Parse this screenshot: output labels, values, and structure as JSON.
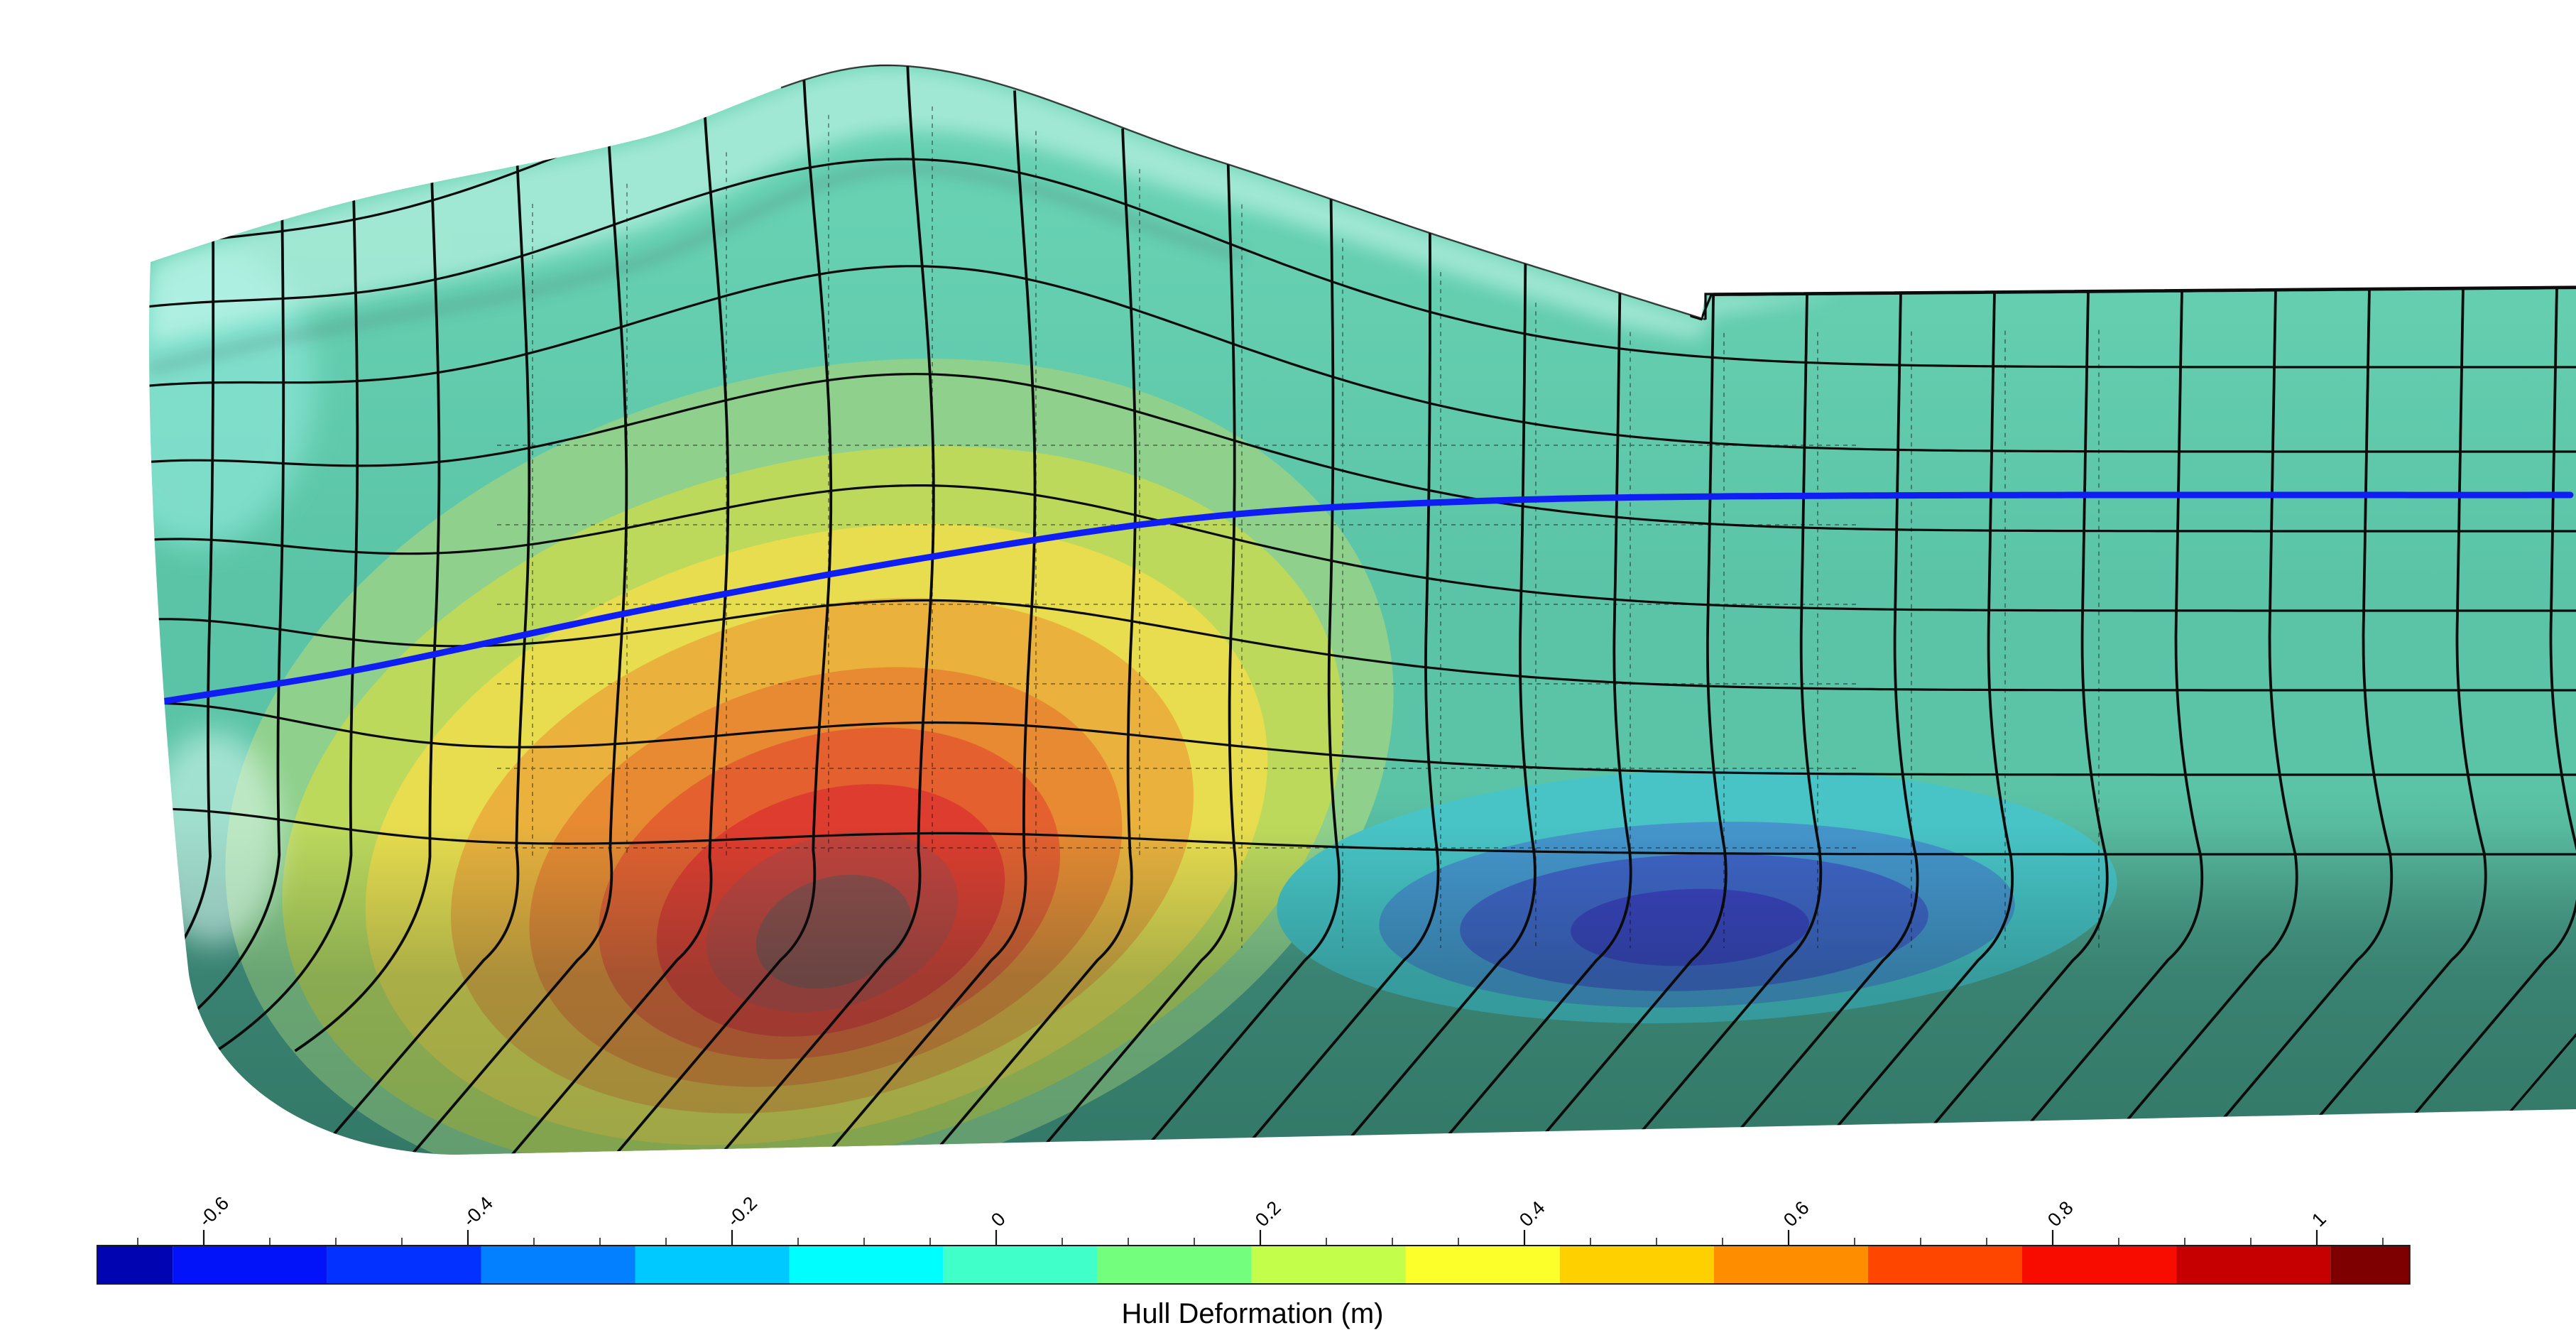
{
  "figure": {
    "background": "#ffffff",
    "type_hint": "filled contour plot on 3D ship hull surface with panel mesh"
  },
  "hull_view": {
    "base_color": "#5bc4a6",
    "base_color_light": "#67d1b2",
    "bottom_shade_color": "#48987f",
    "mesh_color": "#0b0b0b",
    "waterline_color": "#0f1ef2",
    "highlight_color": "#dbfff6",
    "bow_patch_color": "#8fe9db",
    "positive_contour_colors": [
      "#8fd08c",
      "#bdd95c",
      "#e8dd4e",
      "#eab23c",
      "#e78a31",
      "#e4602f",
      "#de3c2e",
      "#c2423c",
      "#8f4b48"
    ],
    "negative_contour_colors": [
      "#48c4c6",
      "#4595cc",
      "#3f63c6",
      "#3a40bd"
    ]
  },
  "colorbar": {
    "label": "Hull Deformation (m)",
    "units": "m",
    "min": -0.681,
    "max": 1.07,
    "major_ticks": [
      -0.6,
      -0.4,
      -0.2,
      0,
      0.2,
      0.4,
      0.6,
      0.8,
      1
    ],
    "tick_labels": [
      "-0.6",
      "-0.4",
      "-0.2",
      "0",
      "0.2",
      "0.4",
      "0.6",
      "0.8",
      "1"
    ],
    "minor_tick_step": 0.05,
    "band_edges": [
      -0.6807,
      -0.6235,
      -0.5068,
      -0.3901,
      -0.2734,
      -0.1567,
      -0.04,
      0.0767,
      0.1934,
      0.3101,
      0.4268,
      0.5435,
      0.6602,
      0.7769,
      0.8936,
      1.0103,
      1.0703
    ],
    "band_colors": [
      "#0005b2",
      "#0213fa",
      "#0331ff",
      "#0280ff",
      "#00c9ff",
      "#00fdff",
      "#40ffc9",
      "#73ff7d",
      "#c3ff4a",
      "#fdff2b",
      "#ffd000",
      "#ff8d00",
      "#ff4600",
      "#f90c00",
      "#c60000",
      "#7f0000"
    ]
  },
  "chart_data": {
    "type": "heatmap",
    "title": "Hull Deformation (m)",
    "field": "hull deformation",
    "units": "m",
    "scene": "3D ship hull viewed from the side, bow at left; deformed panel mesh (solid black) with undeformed reference mesh (thin dashed); waterline drawn as thick blue curve",
    "value_range": [
      -0.681,
      1.07
    ],
    "contour_levels": [
      -0.6235,
      -0.5068,
      -0.3901,
      -0.2734,
      -0.1567,
      -0.04,
      0.0767,
      0.1934,
      0.3101,
      0.4268,
      0.5435,
      0.6602,
      0.7769,
      0.8936,
      1.0103
    ],
    "legend_position": "bottom horizontal colorbar",
    "regions": [
      {
        "label": "positive deformation hotspot",
        "approx_value_max": 1.07,
        "location": "forward side shell around and below the waterline, bow quarter"
      },
      {
        "label": "negative deformation pocket",
        "approx_value_min": -0.68,
        "location": "bilge / bottom near midship"
      },
      {
        "label": "background hull surface",
        "approx_value": 0.0
      }
    ],
    "annotations": [
      "waterline (blue curve)"
    ]
  }
}
